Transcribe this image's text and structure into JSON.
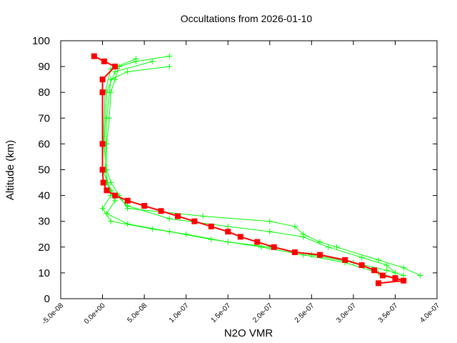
{
  "chart_data": {
    "type": "line",
    "title": "Occultations from 2026-01-10",
    "xlabel": "N2O VMR",
    "ylabel": "Altitude (km)",
    "xlim": [
      -5e-08,
      4e-07
    ],
    "ylim": [
      0,
      100
    ],
    "xticks": [
      "-5.0e-08",
      "0.0e+00",
      "5.0e-08",
      "1.0e-07",
      "1.5e-07",
      "2.0e-07",
      "2.5e-07",
      "3.0e-07",
      "3.5e-07",
      "4.0e-07"
    ],
    "yticks": [
      "0",
      "10",
      "20",
      "30",
      "40",
      "50",
      "60",
      "70",
      "80",
      "90",
      "100"
    ],
    "grid": false,
    "colors": {
      "profiles": "#00ff00",
      "highlight": "#ff0000"
    },
    "series": [
      {
        "marker": "plus",
        "color": "#00ff00",
        "points": [
          [
            8e-08,
            94
          ],
          [
            4e-08,
            92
          ],
          [
            2e-08,
            90
          ],
          [
            1.5e-08,
            85
          ],
          [
            1e-08,
            80
          ],
          [
            8e-09,
            70
          ],
          [
            5e-09,
            60
          ],
          [
            5e-09,
            50
          ],
          [
            1e-08,
            45
          ],
          [
            2e-08,
            40
          ],
          [
            3e-08,
            35
          ],
          [
            1.2e-07,
            32
          ],
          [
            2e-07,
            30
          ],
          [
            2.3e-07,
            28
          ],
          [
            2.4e-07,
            25
          ],
          [
            2.6e-07,
            22
          ],
          [
            2.8e-07,
            20
          ],
          [
            3.3e-07,
            15
          ],
          [
            3.6e-07,
            12
          ],
          [
            3.8e-07,
            9
          ]
        ]
      },
      {
        "marker": "plus",
        "color": "#00ff00",
        "points": [
          [
            8e-08,
            90
          ],
          [
            3e-08,
            88
          ],
          [
            1e-08,
            85
          ],
          [
            5e-09,
            70
          ],
          [
            3e-09,
            50
          ],
          [
            1e-08,
            40
          ],
          [
            0,
            35
          ],
          [
            1e-08,
            30
          ],
          [
            6e-08,
            27
          ],
          [
            1e-07,
            25
          ],
          [
            1.5e-07,
            22
          ],
          [
            2e-07,
            20
          ],
          [
            2.5e-07,
            17
          ],
          [
            3e-07,
            14
          ],
          [
            3.4e-07,
            11
          ],
          [
            3.6e-07,
            9
          ]
        ]
      },
      {
        "marker": "plus",
        "color": "#00ff00",
        "points": [
          [
            6e-08,
            92
          ],
          [
            1.5e-08,
            88
          ],
          [
            5e-09,
            80
          ],
          [
            2e-09,
            60
          ],
          [
            5e-09,
            45
          ],
          [
            1.5e-08,
            38
          ],
          [
            5e-09,
            33
          ],
          [
            3e-08,
            29
          ],
          [
            8e-08,
            26
          ],
          [
            1.3e-07,
            23
          ],
          [
            1.9e-07,
            20
          ],
          [
            2.4e-07,
            17
          ],
          [
            2.9e-07,
            14
          ],
          [
            3.3e-07,
            10
          ],
          [
            3.5e-07,
            8
          ]
        ]
      },
      {
        "marker": "plus",
        "color": "#00ff00",
        "points": [
          [
            4e-08,
            93
          ],
          [
            1e-08,
            89
          ],
          [
            3e-09,
            80
          ],
          [
            0,
            50
          ],
          [
            1e-08,
            42
          ],
          [
            3e-08,
            36
          ],
          [
            8e-08,
            31
          ],
          [
            1.5e-07,
            28
          ],
          [
            2e-07,
            26
          ],
          [
            2.4e-07,
            24
          ],
          [
            2.7e-07,
            20
          ],
          [
            3.1e-07,
            16
          ],
          [
            3.4e-07,
            13
          ],
          [
            3.5e-07,
            10
          ]
        ]
      },
      {
        "marker": "square",
        "color": "#ff0000",
        "points": [
          [
            -1e-08,
            94
          ],
          [
            2e-09,
            92
          ],
          [
            1.5e-08,
            90
          ],
          [
            0,
            85
          ],
          [
            0,
            80
          ],
          [
            0,
            60
          ],
          [
            0,
            50
          ],
          [
            1e-09,
            45
          ],
          [
            5e-09,
            42
          ],
          [
            1.5e-08,
            40
          ],
          [
            3e-08,
            38
          ],
          [
            5e-08,
            36
          ],
          [
            7e-08,
            34
          ],
          [
            9e-08,
            32
          ],
          [
            1.1e-07,
            30
          ],
          [
            1.3e-07,
            28
          ],
          [
            1.5e-07,
            26
          ],
          [
            1.65e-07,
            24
          ],
          [
            1.85e-07,
            22
          ],
          [
            2.05e-07,
            20
          ],
          [
            2.3e-07,
            18
          ],
          [
            2.6e-07,
            17
          ],
          [
            2.9e-07,
            15
          ],
          [
            3.1e-07,
            13
          ],
          [
            3.25e-07,
            11
          ],
          [
            3.35e-07,
            9
          ],
          [
            3.5e-07,
            8
          ],
          [
            3.6e-07,
            7
          ],
          [
            3.3e-07,
            6
          ]
        ]
      }
    ]
  }
}
